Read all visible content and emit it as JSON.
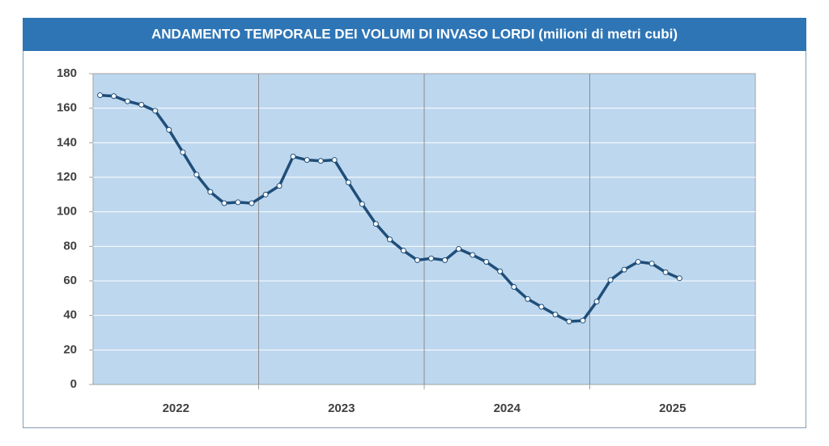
{
  "chart_data": {
    "type": "line",
    "title": "ANDAMENTO TEMPORALE DEI VOLUMI DI INVASO LORDI (milioni di metri cubi)",
    "x": [
      2022.042,
      2022.125,
      2022.208,
      2022.292,
      2022.375,
      2022.458,
      2022.542,
      2022.625,
      2022.708,
      2022.792,
      2022.875,
      2022.958,
      2023.042,
      2023.125,
      2023.208,
      2023.292,
      2023.375,
      2023.458,
      2023.542,
      2023.625,
      2023.708,
      2023.792,
      2023.875,
      2023.958,
      2024.042,
      2024.125,
      2024.208,
      2024.292,
      2024.375,
      2024.458,
      2024.542,
      2024.625,
      2024.708,
      2024.792,
      2024.875,
      2024.958,
      2025.042,
      2025.125,
      2025.208,
      2025.292,
      2025.375,
      2025.458,
      2025.542
    ],
    "series": [
      {
        "color": "#1f4e79",
        "values": [
          167.5,
          167,
          164,
          162,
          158.5,
          147.5,
          134.5,
          121.5,
          111.5,
          105,
          105.5,
          105,
          110,
          115,
          132,
          130,
          129.5,
          130,
          117,
          104.5,
          93,
          84,
          77.5,
          72,
          73,
          72,
          78.5,
          75,
          71,
          65.5,
          56.5,
          49.5,
          45,
          40.5,
          36.5,
          37,
          48,
          60.5,
          66.5,
          71,
          70,
          65,
          61.5
        ]
      }
    ],
    "xlim": [
      2022,
      2026
    ],
    "xticks": [
      {
        "value": 2022.5,
        "label": "2022"
      },
      {
        "value": 2023.5,
        "label": "2023"
      },
      {
        "value": 2024.5,
        "label": "2024"
      },
      {
        "value": 2025.5,
        "label": "2025"
      }
    ],
    "xgrid": [
      2023,
      2024,
      2025
    ],
    "ylim": [
      0,
      180
    ],
    "yticks": [
      0,
      20,
      40,
      60,
      80,
      100,
      120,
      140,
      160,
      180
    ],
    "grid": true
  }
}
